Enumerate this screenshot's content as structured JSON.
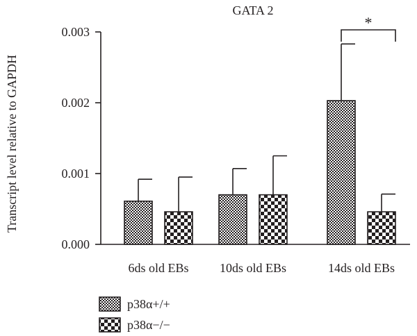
{
  "chart_data": {
    "type": "bar",
    "title": "GATA 2",
    "xlabel": "",
    "ylabel": "Transcript level relative to GAPDH",
    "ylim": [
      0,
      0.003
    ],
    "yticks": [
      "0.000",
      "0.001",
      "0.002",
      "0.003"
    ],
    "categories": [
      "6ds old EBs",
      "10ds old EBs",
      "14ds old EBs"
    ],
    "series": [
      {
        "name": "p38α+/+",
        "values": [
          0.00061,
          0.0007,
          0.00203
        ],
        "errors": [
          0.00031,
          0.00037,
          0.0008
        ],
        "pattern": "fine-checker"
      },
      {
        "name": "p38α−/−",
        "values": [
          0.00046,
          0.0007,
          0.00046
        ],
        "errors": [
          0.00049,
          0.00055,
          0.00025
        ],
        "pattern": "coarse-checker"
      }
    ],
    "significance": [
      {
        "category_index": 2,
        "label": "*"
      }
    ],
    "legend_position": "bottom-left",
    "grid": false,
    "colors": {
      "ink": "#231f20",
      "background": "#ffffff"
    }
  }
}
